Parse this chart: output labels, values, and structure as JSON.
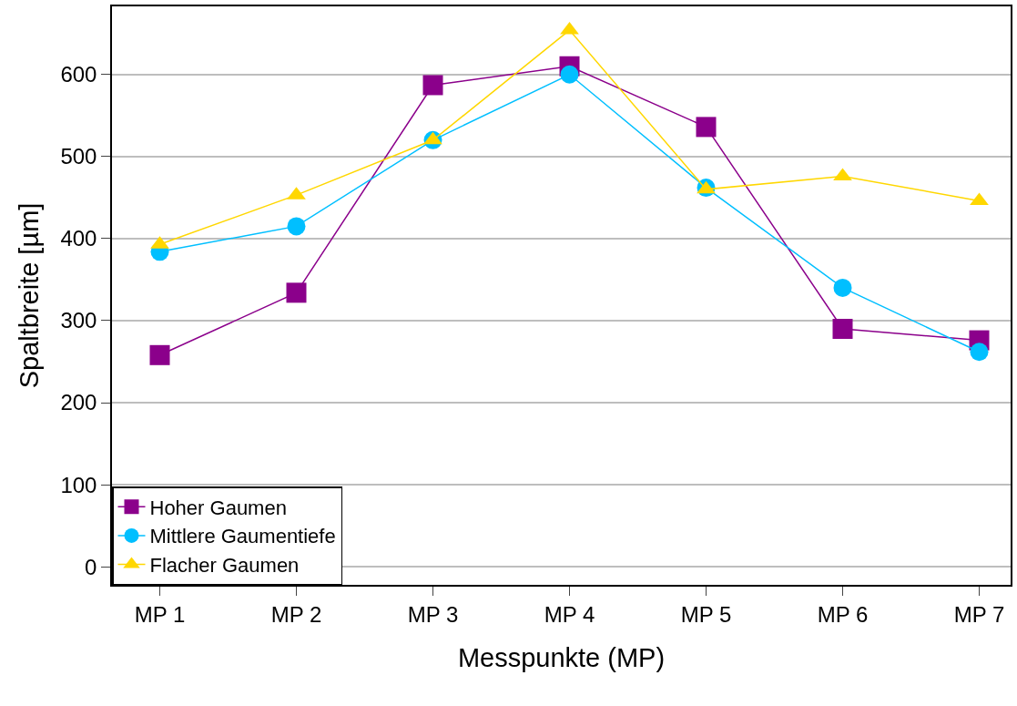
{
  "chart_data": {
    "type": "line",
    "xlabel": "Messpunkte (MP)",
    "ylabel": "Spaltbreite [µm]",
    "categories": [
      "MP 1",
      "MP 2",
      "MP 3",
      "MP 4",
      "MP 5",
      "MP 6",
      "MP 7"
    ],
    "series": [
      {
        "name": "Hoher Gaumen",
        "color": "#8b008b",
        "marker": "square",
        "values": [
          258,
          334,
          587,
          610,
          536,
          290,
          276
        ]
      },
      {
        "name": "Mittlere Gaumentiefe",
        "color": "#00bfff",
        "marker": "circle",
        "values": [
          384,
          415,
          520,
          600,
          462,
          340,
          262
        ]
      },
      {
        "name": "Flacher Gaumen",
        "color": "#ffd700",
        "marker": "triangle",
        "values": [
          393,
          453,
          520,
          654,
          460,
          476,
          446
        ]
      }
    ],
    "ylim": [
      -22,
      683
    ],
    "yticks": [
      0,
      100,
      200,
      300,
      400,
      500,
      600
    ],
    "grid": "y",
    "legend": "bottom left",
    "line_style": "solid"
  }
}
